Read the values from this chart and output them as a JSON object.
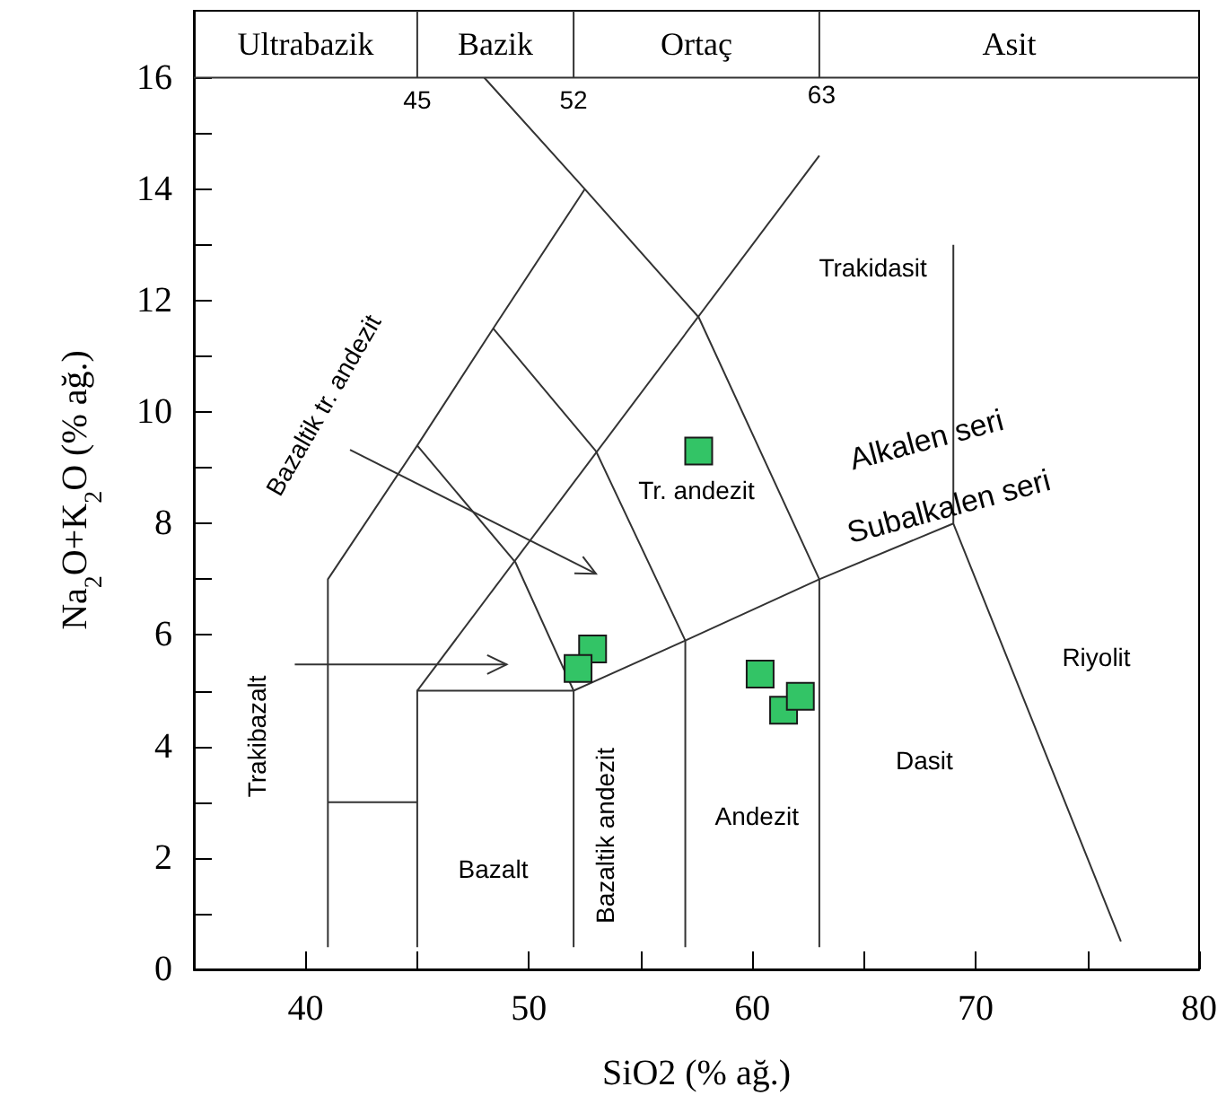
{
  "chart_data": {
    "type": "scatter",
    "xlabel": "SiO2 (% ağ.)",
    "ylabel": "Na$_{2}$O+K$_{2}$O (% ağ.)",
    "xlim": [
      35,
      80
    ],
    "ylim": [
      0,
      17.2
    ],
    "xticks": [
      40,
      {
        "value": 45,
        "label": null
      },
      50,
      {
        "value": 55,
        "label": null
      },
      60,
      {
        "value": 65,
        "label": null
      },
      70,
      {
        "value": 75,
        "label": null
      },
      80
    ],
    "yticks": [
      0,
      {
        "value": 1,
        "label": null
      },
      2,
      {
        "value": 3,
        "label": null
      },
      4,
      {
        "value": 5,
        "label": null
      },
      6,
      {
        "value": 7,
        "label": null
      },
      8,
      {
        "value": 9,
        "label": null
      },
      10,
      {
        "value": 11,
        "label": null
      },
      12,
      {
        "value": 13,
        "label": null
      },
      14,
      {
        "value": 15,
        "label": null
      },
      16
    ],
    "grid": false,
    "series": [
      {
        "color": "#33c466",
        "marker": "square",
        "x": [
          57.6,
          52.85,
          52.2,
          60.35,
          61.4,
          62.15
        ],
        "values": [
          9.3,
          5.75,
          5.4,
          5.3,
          4.65,
          4.9
        ]
      },
      {
        "type": "line",
        "marker": "none",
        "color": "#333333",
        "x": [
          41,
          41,
          45,
          48.4,
          52.5
        ],
        "values": [
          0.4,
          7,
          9.4,
          11.5,
          14
        ]
      },
      {
        "type": "line",
        "marker": "none",
        "color": "#333333",
        "x": [
          48,
          52.5,
          57.6,
          63,
          63
        ],
        "values": [
          16,
          14,
          11.7,
          7,
          0.4
        ]
      },
      {
        "type": "line",
        "marker": "none",
        "color": "#333333",
        "x": [
          41,
          45
        ],
        "values": [
          3,
          3
        ]
      },
      {
        "type": "line",
        "marker": "none",
        "color": "#333333",
        "x": [
          45,
          45,
          52,
          57,
          63,
          69
        ],
        "values": [
          0.4,
          5,
          5,
          5.9,
          7,
          8
        ]
      },
      {
        "type": "line",
        "marker": "none",
        "color": "#333333",
        "x": [
          45,
          49.4,
          52,
          52
        ],
        "values": [
          9.4,
          7.3,
          5,
          0.4
        ]
      },
      {
        "type": "line",
        "marker": "none",
        "color": "#333333",
        "x": [
          48.4,
          53,
          57,
          57
        ],
        "values": [
          11.5,
          9.3,
          5.9,
          0.4
        ]
      },
      {
        "type": "line",
        "marker": "none",
        "color": "#333333",
        "x": [
          45,
          63
        ],
        "values": [
          5,
          14.6
        ]
      },
      {
        "type": "line",
        "marker": "none",
        "color": "#333333",
        "x": [
          69,
          69,
          76.5
        ],
        "values": [
          13,
          8,
          0.5
        ]
      },
      {
        "type": "line",
        "marker": "none",
        "color": "#333333",
        "x": [
          35,
          80
        ],
        "values": [
          16,
          16
        ]
      },
      {
        "type": "line",
        "marker": "none",
        "color": "#333333",
        "x": [
          45,
          45
        ],
        "values": [
          16,
          17.2
        ]
      },
      {
        "type": "line",
        "marker": "none",
        "color": "#333333",
        "x": [
          52,
          52
        ],
        "values": [
          16,
          17.2
        ]
      },
      {
        "type": "line",
        "marker": "none",
        "color": "#333333",
        "x": [
          63,
          63
        ],
        "values": [
          16,
          17.2
        ]
      }
    ],
    "annotations": [
      "Ultrabazik",
      "Bazik",
      "Ortaç",
      "Asit",
      "45",
      "52",
      "63",
      "Trakidasit",
      "Tr. andezit",
      "Alkalen seri",
      "Subalkalen seri",
      "Riyolit",
      "Dasit",
      "Andezit",
      "Bazalt",
      "Bazaltik andezit",
      "Trakibazalt",
      "Bazaltik tr. andezit"
    ]
  }
}
